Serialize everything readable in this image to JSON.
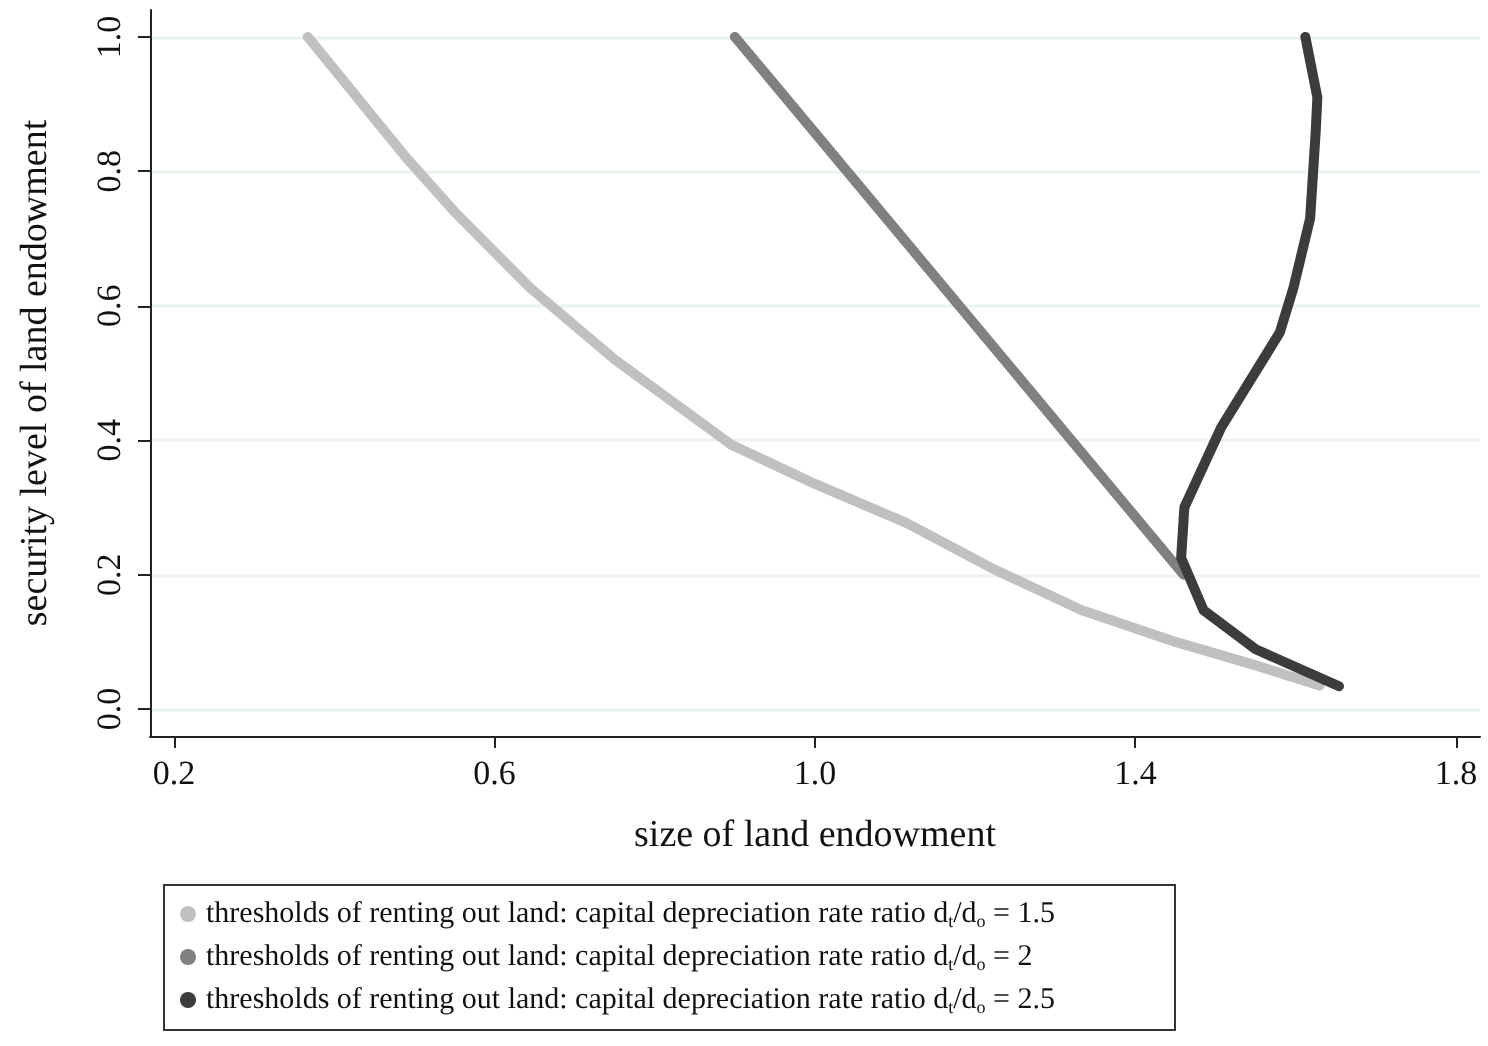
{
  "chart_data": {
    "type": "line",
    "xlabel": "size of land endowment",
    "ylabel": "security level of land endowment",
    "xlim": [
      0.17,
      1.83
    ],
    "ylim": [
      -0.04,
      1.04
    ],
    "xticks": [
      0.2,
      0.6,
      {
        "value": 1,
        "label": "1.0"
      },
      1.4,
      1.8
    ],
    "yticks": [
      {
        "value": 0,
        "label": "0.0"
      },
      0.2,
      0.4,
      0.6,
      0.8,
      {
        "value": 1,
        "label": "1.0"
      }
    ],
    "grid": "y",
    "legend": "bottom",
    "marker": "none",
    "line_style": "solid",
    "series": [
      {
        "name": "thresholds of renting out land: capital depreciation rate ratio d$_{t}$/d$_{o}$ = 1.5",
        "color": "#c0c0c0",
        "x": [
          0.367,
          0.49,
          0.55,
          0.645,
          0.75,
          0.896,
          1.0,
          1.114,
          1.22,
          1.333,
          1.45,
          1.55,
          1.63
        ],
        "values": [
          1.0,
          0.82,
          0.74,
          0.626,
          0.52,
          0.393,
          0.335,
          0.277,
          0.21,
          0.147,
          0.1,
          0.065,
          0.035
        ]
      },
      {
        "name": "thresholds of renting out land: capital depreciation rate ratio d$_{t}$/d$_{o}$ = 2",
        "color": "#808080",
        "x": [
          0.9,
          1.46
        ],
        "values": [
          1.0,
          0.2
        ]
      },
      {
        "name": "thresholds of renting out land: capital depreciation rate ratio d$_{t}$/d$_{o}$ = 2.5",
        "color": "#3c3c3c",
        "x": [
          1.612,
          1.627,
          1.625,
          1.618,
          1.597,
          1.58,
          1.507,
          1.461,
          1.457,
          1.485,
          1.55,
          1.654
        ],
        "values": [
          1.0,
          0.91,
          0.86,
          0.73,
          0.626,
          0.56,
          0.419,
          0.3,
          0.225,
          0.147,
          0.089,
          0.034
        ]
      }
    ]
  }
}
